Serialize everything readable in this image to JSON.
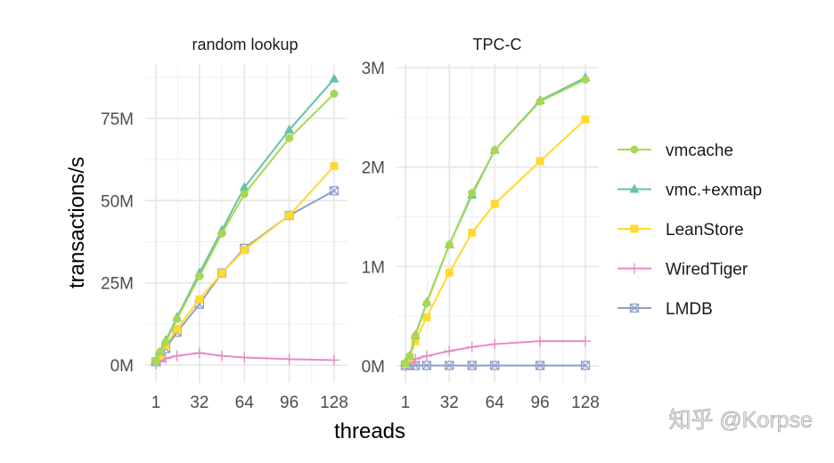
{
  "chart_data": [
    {
      "type": "line",
      "title": "random lookup",
      "xlabel": "threads",
      "ylabel": "transactions/s",
      "x": [
        1,
        4,
        8,
        16,
        32,
        48,
        64,
        96,
        128
      ],
      "xticks": [
        1,
        32,
        64,
        96,
        128
      ],
      "xtick_labels": [
        "1",
        "32",
        "64",
        "96",
        "128"
      ],
      "yticks": [
        0,
        25,
        50,
        75
      ],
      "ytick_labels": [
        "0M",
        "25M",
        "50M",
        "75M"
      ],
      "yunit": "M",
      "ylim": [
        0,
        91.5
      ],
      "grid": true,
      "series": [
        {
          "name": "vmcache",
          "values": [
            1,
            4,
            7,
            14,
            27,
            40,
            52,
            69,
            82.5
          ]
        },
        {
          "name": "vmc.+exmap",
          "values": [
            1,
            4,
            7.5,
            14.5,
            28,
            41,
            54,
            71.5,
            87
          ]
        },
        {
          "name": "LeanStore",
          "values": [
            1,
            3,
            6,
            11,
            20,
            28,
            35,
            45.5,
            60.5
          ]
        },
        {
          "name": "WiredTiger",
          "values": [
            0.3,
            1,
            2,
            2.8,
            3.7,
            2.8,
            2.3,
            1.8,
            1.5
          ]
        },
        {
          "name": "LMDB",
          "values": [
            1,
            2.5,
            5,
            10,
            18.5,
            28,
            35.5,
            45.5,
            53
          ]
        }
      ]
    },
    {
      "type": "line",
      "title": "TPC-C",
      "xlabel": "threads",
      "ylabel": "transactions/s",
      "x": [
        1,
        4,
        8,
        16,
        32,
        48,
        64,
        96,
        128
      ],
      "xticks": [
        1,
        32,
        64,
        96,
        128
      ],
      "xtick_labels": [
        "1",
        "32",
        "64",
        "96",
        "128"
      ],
      "yticks": [
        0,
        1,
        2,
        3
      ],
      "ytick_labels": [
        "0M",
        "1M",
        "2M",
        "3M"
      ],
      "yunit": "M",
      "ylim": [
        0,
        3.0
      ],
      "grid": true,
      "series": [
        {
          "name": "vmcache",
          "values": [
            0.03,
            0.1,
            0.3,
            0.63,
            1.22,
            1.74,
            2.17,
            2.66,
            2.88
          ]
        },
        {
          "name": "vmc.+exmap",
          "values": [
            0.03,
            0.1,
            0.31,
            0.64,
            1.22,
            1.72,
            2.17,
            2.67,
            2.9
          ]
        },
        {
          "name": "LeanStore",
          "values": [
            0.02,
            0.08,
            0.25,
            0.49,
            0.94,
            1.34,
            1.63,
            2.06,
            2.48
          ]
        },
        {
          "name": "WiredTiger",
          "values": [
            0,
            0.03,
            0.07,
            0.1,
            0.15,
            0.19,
            0.22,
            0.25,
            0.25
          ]
        },
        {
          "name": "LMDB",
          "values": [
            0.005,
            0.005,
            0.005,
            0.005,
            0.005,
            0.005,
            0.005,
            0.005,
            0.005
          ]
        }
      ]
    }
  ],
  "axis": {
    "xlabel": "threads",
    "ylabel": "transactions/s"
  },
  "legend": {
    "position": "right",
    "items": [
      {
        "name": "vmcache",
        "color": "#a6d854",
        "marker": "circle"
      },
      {
        "name": "vmc.+exmap",
        "color": "#66c2a5",
        "marker": "triangle"
      },
      {
        "name": "LeanStore",
        "color": "#ffd92f",
        "marker": "square"
      },
      {
        "name": "WiredTiger",
        "color": "#e78ac3",
        "marker": "plus"
      },
      {
        "name": "LMDB",
        "color": "#8da0cb",
        "marker": "boxed-x"
      }
    ]
  },
  "watermark": "知乎 @Korpse"
}
